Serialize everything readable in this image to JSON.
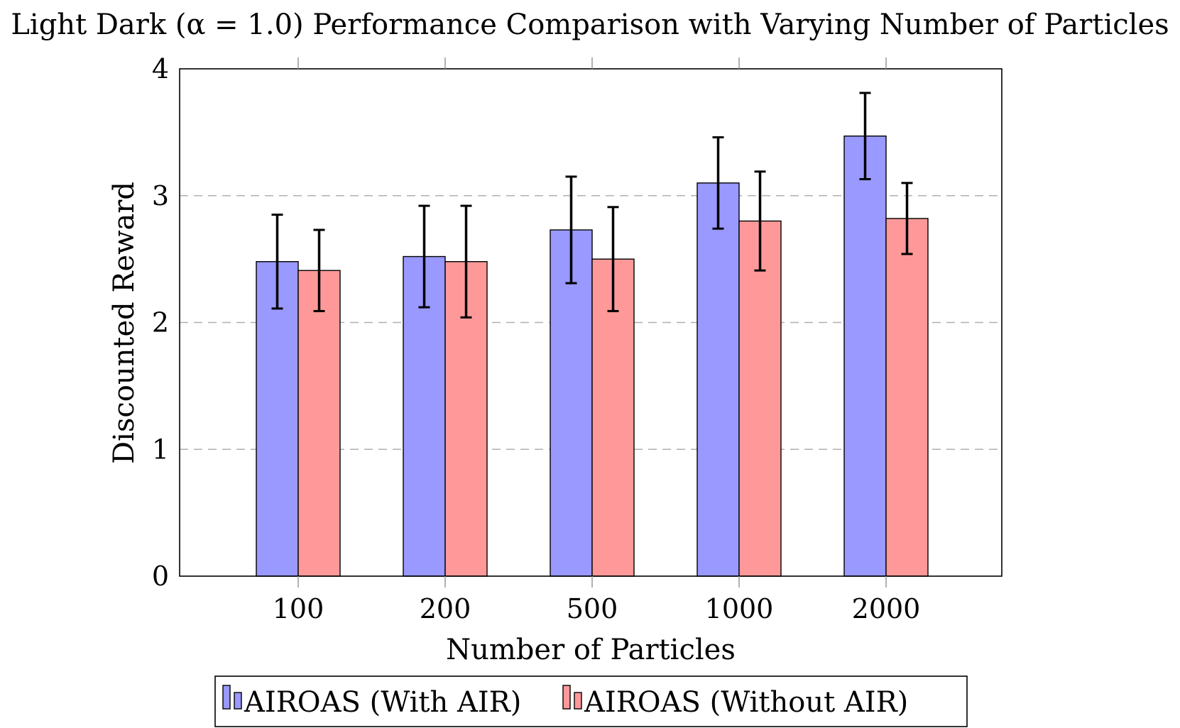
{
  "chart_data": {
    "type": "bar",
    "title": "Light Dark (α = 1.0) Performance Comparison with Varying Number of Particles",
    "xlabel": "Number of Particles",
    "ylabel": "Discounted Reward",
    "categories": [
      "100",
      "200",
      "500",
      "1000",
      "2000"
    ],
    "ylim": [
      0,
      4
    ],
    "yticks": [
      0,
      1,
      2,
      3,
      4
    ],
    "grid": "y-dashed",
    "legend_position": "bottom",
    "series": [
      {
        "name": "AIROAS (With AIR)",
        "color": "#9999ff",
        "values": [
          2.48,
          2.52,
          2.73,
          3.1,
          3.47
        ],
        "errors": [
          0.37,
          0.4,
          0.42,
          0.36,
          0.34
        ]
      },
      {
        "name": "AIROAS (Without AIR)",
        "color": "#ff9999",
        "values": [
          2.41,
          2.48,
          2.5,
          2.8,
          2.82
        ],
        "errors": [
          0.32,
          0.44,
          0.41,
          0.39,
          0.28
        ]
      }
    ]
  }
}
